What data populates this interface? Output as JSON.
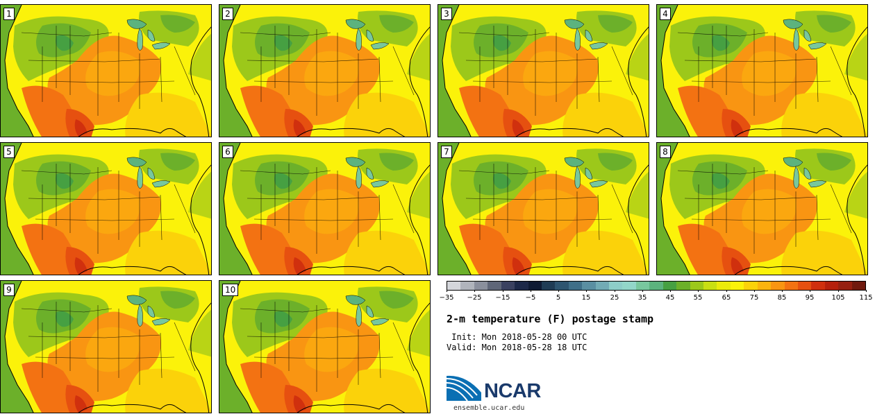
{
  "panels": [
    {
      "number": "1"
    },
    {
      "number": "2"
    },
    {
      "number": "3"
    },
    {
      "number": "4"
    },
    {
      "number": "5"
    },
    {
      "number": "6"
    },
    {
      "number": "7"
    },
    {
      "number": "8"
    },
    {
      "number": "9"
    },
    {
      "number": "10"
    }
  ],
  "colorbar": {
    "colors": [
      "#d4d6db",
      "#b0b4bc",
      "#8a8f9c",
      "#5f6678",
      "#3a4160",
      "#1c2848",
      "#0e1a33",
      "#1f3c55",
      "#2e5570",
      "#3f6f88",
      "#5a8fa2",
      "#72abb5",
      "#8dcdc8",
      "#92d6c9",
      "#78c79e",
      "#5cb37e",
      "#46a042",
      "#6cb02a",
      "#9cc81a",
      "#c9df12",
      "#ebeb0a",
      "#fbf20a",
      "#fbd20a",
      "#fbb40e",
      "#f99512",
      "#f37212",
      "#e65010",
      "#d0300e",
      "#b5200c",
      "#962010",
      "#701a0e"
    ],
    "tick_labels": [
      "−35",
      "−25",
      "−15",
      "−5",
      "5",
      "15",
      "25",
      "35",
      "45",
      "55",
      "65",
      "75",
      "85",
      "95",
      "105",
      "115"
    ]
  },
  "title": "2-m temperature (F) postage stamp",
  "init": " Init: Mon 2018-05-28 00 UTC",
  "valid": "Valid: Mon 2018-05-28 18 UTC",
  "logo": {
    "text": "NCAR",
    "url_text": "ensemble.ucar.edu"
  }
}
